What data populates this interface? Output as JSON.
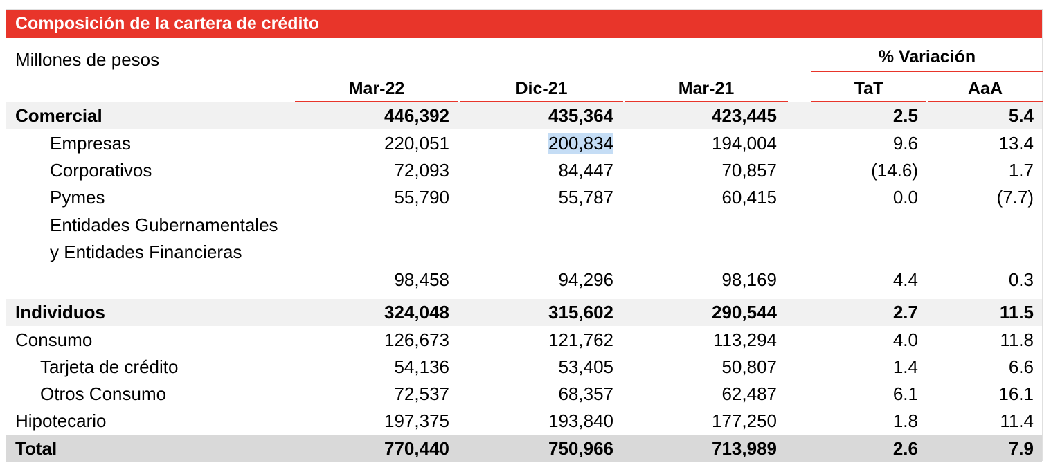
{
  "title": "Composición de la cartera de crédito",
  "units": "Millones de pesos",
  "variation_header": "% Variación",
  "columns": [
    "Mar-22",
    "Dic-21",
    "Mar-21",
    "TaT",
    "AaA"
  ],
  "rows": [
    {
      "label": "Comercial",
      "values": [
        "446,392",
        "435,364",
        "423,445",
        "2.5",
        "5.4"
      ]
    },
    {
      "label": "Empresas",
      "values": [
        "220,051",
        "200,834",
        "194,004",
        "9.6",
        "13.4"
      ]
    },
    {
      "label": "Corporativos",
      "values": [
        "72,093",
        "84,447",
        "70,857",
        "(14.6)",
        "1.7"
      ]
    },
    {
      "label": "Pymes",
      "values": [
        "55,790",
        "55,787",
        "60,415",
        "0.0",
        "(7.7)"
      ]
    },
    {
      "label": "Entidades Gubernamentales y Entidades Financieras",
      "values": [
        "98,458",
        "94,296",
        "98,169",
        "4.4",
        "0.3"
      ]
    },
    {
      "label": "Individuos",
      "values": [
        "324,048",
        "315,602",
        "290,544",
        "2.7",
        "11.5"
      ]
    },
    {
      "label": "Consumo",
      "values": [
        "126,673",
        "121,762",
        "113,294",
        "4.0",
        "11.8"
      ]
    },
    {
      "label": "Tarjeta de crédito",
      "values": [
        "54,136",
        "53,405",
        "50,807",
        "1.4",
        "6.6"
      ]
    },
    {
      "label": "Otros Consumo",
      "values": [
        "72,537",
        "68,357",
        "62,487",
        "6.1",
        "16.1"
      ]
    },
    {
      "label": "Hipotecario",
      "values": [
        "197,375",
        "193,840",
        "177,250",
        "1.8",
        "11.4"
      ]
    },
    {
      "label": "Total",
      "values": [
        "770,440",
        "750,966",
        "713,989",
        "2.6",
        "7.9"
      ]
    }
  ],
  "colors": {
    "accent": "#e8352a",
    "band": "#f1f1f1",
    "total_band": "#d9d9d9",
    "selection": "#c5ddf5"
  }
}
